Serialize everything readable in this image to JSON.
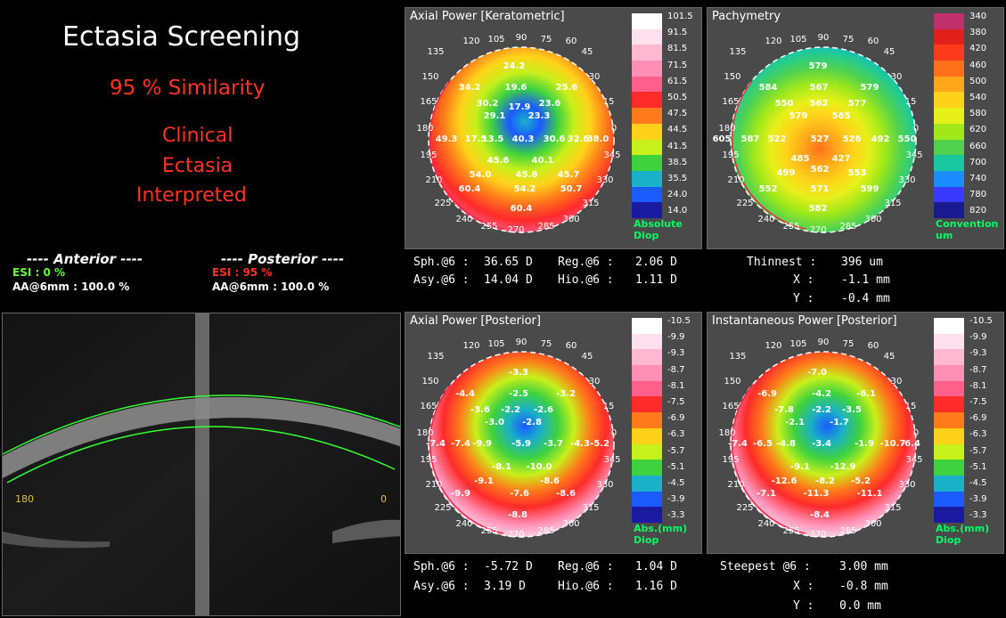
{
  "screening": {
    "title": "Ectasia Screening",
    "similarity": "95 % Similarity",
    "interp_line1": "Clinical",
    "interp_line2": "Ectasia",
    "interp_line3": "Interpreted",
    "anterior_header": "---- Anterior ----",
    "posterior_header": "---- Posterior ----",
    "ant_esi": "ESI : 0 %",
    "ant_aa": "AA@6mm : 100.0 %",
    "post_esi": "ESI : 95 %",
    "post_aa": "AA@6mm : 100.0 %",
    "colors": {
      "title": "#ffffff",
      "similarity": "#ff3322",
      "ant_esi": "#66ff33",
      "post_esi": "#ff3322"
    }
  },
  "oct": {
    "left_label": "180",
    "right_label": "0"
  },
  "angles": [
    "120",
    "105",
    "90",
    "75",
    "60",
    "45",
    "30",
    "135",
    "150",
    "165",
    "180",
    "195",
    "210",
    "225",
    "240",
    "255",
    "270",
    "285",
    "300",
    "315",
    "330",
    "345",
    "15",
    "0"
  ],
  "maps": [
    {
      "title": "Axial Power [Keratometric]",
      "unit1": "Absolute",
      "unit2": "Diop",
      "scale": [
        "101.5",
        "91.5",
        "81.5",
        "71.5",
        "61.5",
        "50.5",
        "47.5",
        "44.5",
        "41.5",
        "38.5",
        "35.5",
        "24.0",
        "14.0"
      ],
      "values": [
        "24.2",
        "34.2",
        "19.6",
        "25.6",
        "30.2",
        "17.9",
        "23.6",
        "29.1",
        "23.3",
        "49.3",
        "17.5",
        "13.5",
        "40.3",
        "30.6",
        "32.6",
        "38.0",
        "45.6",
        "40.1",
        "54.0",
        "45.8",
        "45.7",
        "60.4",
        "54.2",
        "50.7",
        "60.4"
      ]
    },
    {
      "title": "Pachymetry",
      "unit1": "Convention",
      "unit2": "um",
      "scale": [
        "340",
        "380",
        "420",
        "460",
        "500",
        "540",
        "580",
        "620",
        "660",
        "700",
        "740",
        "780",
        "820"
      ],
      "values": [
        "579",
        "584",
        "567",
        "579",
        "550",
        "562",
        "577",
        "579",
        "565",
        "605",
        "587",
        "522",
        "527",
        "526",
        "492",
        "550",
        "485",
        "427",
        "499",
        "562",
        "553",
        "552",
        "571",
        "599",
        "582"
      ]
    },
    {
      "title": "Axial Power [Posterior]",
      "unit1": "Abs.(mm)",
      "unit2": "Diop",
      "scale": [
        "-10.5",
        "-9.9",
        "-9.3",
        "-8.7",
        "-8.1",
        "-7.5",
        "-6.9",
        "-6.3",
        "-5.7",
        "-5.1",
        "-4.5",
        "-3.9",
        "-3.3"
      ],
      "values": [
        "-3.3",
        "-4.4",
        "-2.5",
        "-3.2",
        "-3.6",
        "-2.2",
        "-2.6",
        "-3.0",
        "-2.8",
        "-7.4",
        "-7.4",
        "-9.9",
        "-5.9",
        "-3.7",
        "-4.3",
        "-5.2",
        "-8.1",
        "-10.0",
        "-9.1",
        "-8.6",
        "-9.9",
        "-7.6",
        "-8.6",
        "-8.8"
      ]
    },
    {
      "title": "Instantaneous Power [Posterior]",
      "unit1": "Abs.(mm)",
      "unit2": "Diop",
      "scale": [
        "-10.5",
        "-9.9",
        "-9.3",
        "-8.7",
        "-8.1",
        "-7.5",
        "-6.9",
        "-6.3",
        "-5.7",
        "-5.1",
        "-4.5",
        "-3.9",
        "-3.3"
      ],
      "values": [
        "-7.0",
        "-6.9",
        "-4.2",
        "-6.1",
        "-7.8",
        "-2.2",
        "-3.5",
        "-2.1",
        "-1.7",
        "-7.4",
        "-6.5",
        "-4.8",
        "-3.4",
        "-1.9",
        "-10.7",
        "-6.4",
        "-9.1",
        "-12.9",
        "-12.6",
        "-8.2",
        "-5.2",
        "-7.1",
        "-11.3",
        "-11.1",
        "-8.4"
      ]
    }
  ],
  "stats_top_left": {
    "sph_label": "Sph.@6 :",
    "sph_val": "36.65 D",
    "reg_label": "Reg.@6 :",
    "reg_val": "2.06 D",
    "asy_label": "Asy.@6 :",
    "asy_val": "14.04 D",
    "hio_label": "Hio.@6 :",
    "hio_val": "1.11 D"
  },
  "stats_top_right": {
    "thin_label": "Thinnest :",
    "thin_val": "396 um",
    "x_label": "X :",
    "x_val": "-1.1 mm",
    "y_label": "Y :",
    "y_val": "-0.4 mm"
  },
  "stats_bot_left": {
    "sph_label": "Sph.@6 :",
    "sph_val": "-5.72 D",
    "reg_label": "Reg.@6 :",
    "reg_val": "1.04 D",
    "asy_label": "Asy.@6 :",
    "asy_val": "3.19 D",
    "hio_label": "Hio.@6 :",
    "hio_val": "1.16 D"
  },
  "stats_bot_right": {
    "steep_label": "Steepest @6 :",
    "steep_val": "3.00 mm",
    "x_label": "X :",
    "x_val": "-0.8 mm",
    "y_label": "Y :",
    "y_val": "0.0 mm"
  },
  "gradients": {
    "keratometric": [
      "#ffffff",
      "#ffe0ec",
      "#ffb8d0",
      "#ff8fb4",
      "#ff5f8a",
      "#ff2a2a",
      "#ff7a1a",
      "#ffd21a",
      "#c8f01a",
      "#3fd23f",
      "#1ab0c8",
      "#1a5aff",
      "#1a1aa0"
    ],
    "pachy": [
      "#c0306a",
      "#e0201a",
      "#ff3a1a",
      "#ff701a",
      "#ffa51a",
      "#ffd21a",
      "#e8f01a",
      "#a0e81a",
      "#50d250",
      "#1ac8a0",
      "#1a8cff",
      "#3a3aff",
      "#1a1a90"
    ],
    "posterior": [
      "#ffffff",
      "#ffe0ec",
      "#ffb8d0",
      "#ff8fb4",
      "#ff5f8a",
      "#ff2a2a",
      "#ff7a1a",
      "#ffd21a",
      "#c8f01a",
      "#3fd23f",
      "#1ab0c8",
      "#1a5aff",
      "#1a1aa0"
    ]
  }
}
